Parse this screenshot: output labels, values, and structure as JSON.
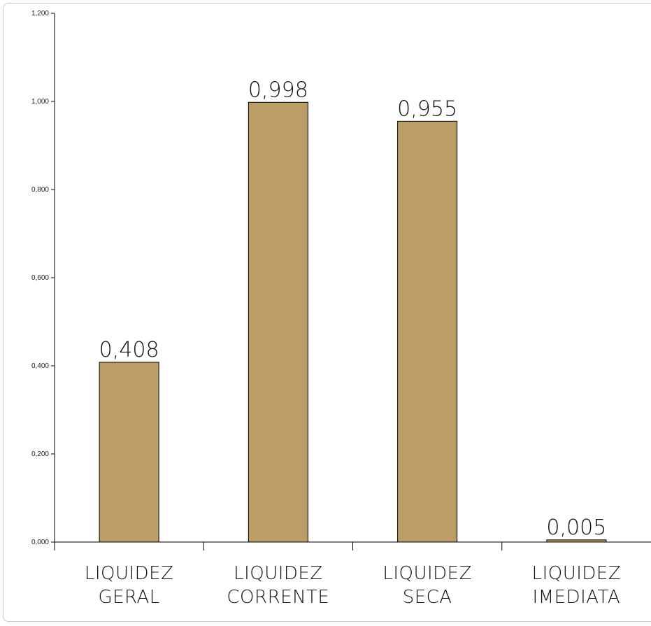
{
  "chart_data": {
    "type": "bar",
    "categories": [
      [
        "LIQUIDEZ",
        "GERAL"
      ],
      [
        "LIQUIDEZ",
        "CORRENTE"
      ],
      [
        "LIQUIDEZ",
        "SECA"
      ],
      [
        "LIQUIDEZ",
        "IMEDIATA"
      ]
    ],
    "values": [
      0.408,
      0.998,
      0.955,
      0.005
    ],
    "data_labels": [
      "0,408",
      "0,998",
      "0,955",
      "0,005"
    ],
    "yticks": [
      0,
      0.2,
      0.4,
      0.6,
      0.8,
      1.0,
      1.2
    ],
    "ytick_labels": [
      "0,000",
      "0,200",
      "0,400",
      "0,600",
      "0,800",
      "1,000",
      "1,200"
    ],
    "ylim": [
      0,
      1.2
    ],
    "title": "",
    "xlabel": "",
    "ylabel": "",
    "grid": false,
    "legend": "none",
    "bar_color": "#BA9E66",
    "bar_edge_color": "#000000"
  }
}
